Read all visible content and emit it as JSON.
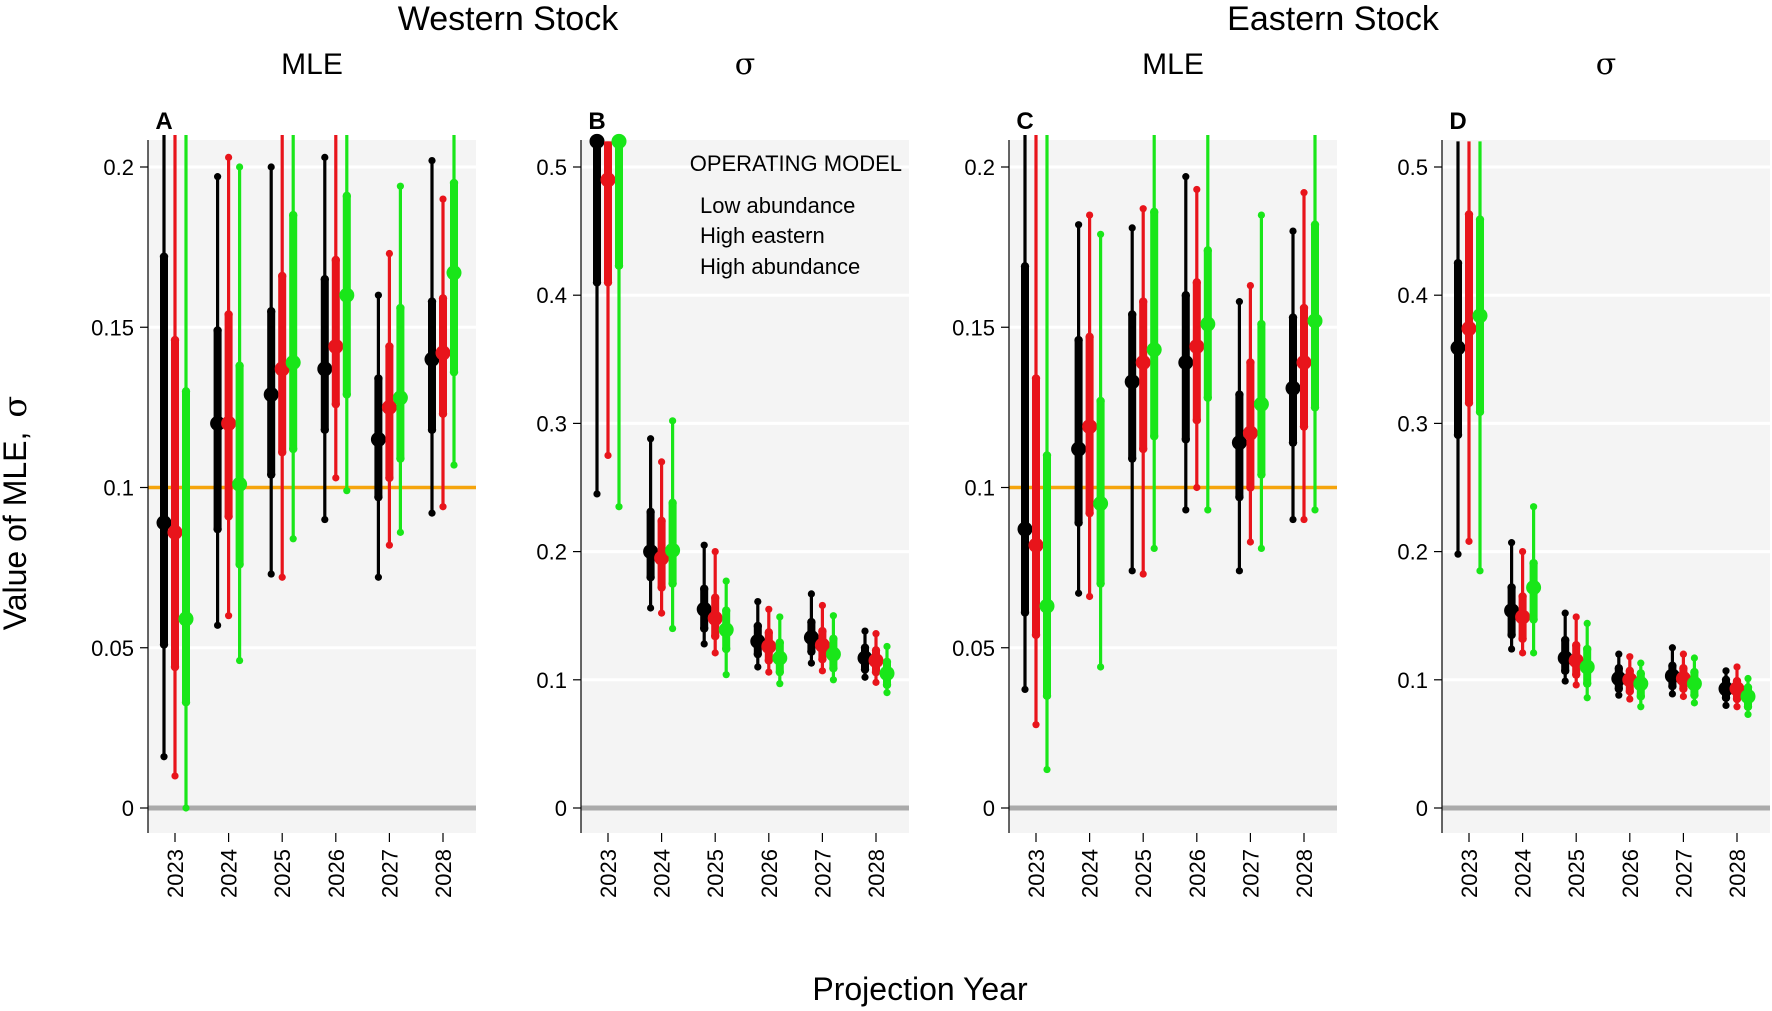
{
  "figure": {
    "stock_titles": [
      "Western Stock",
      "Eastern Stock"
    ],
    "ylabel_text": "Value of MLE,",
    "ylabel_symbol": "σ",
    "xlabel": "Projection Year"
  },
  "colors": {
    "low": "#000000",
    "higheast": "#e8141b",
    "highabund": "#19e619",
    "reference": "#f5a40c",
    "panel_bg": "#f4f4f4",
    "gridline": "#ffffff",
    "zero_line": "#aaaaaa"
  },
  "legend": {
    "title": "OPERATING MODEL",
    "entries": [
      {
        "label": "Low abundance",
        "color": "#000000"
      },
      {
        "label": "High eastern",
        "color": "#e8141b"
      },
      {
        "label": "High abundance",
        "color": "#19e619"
      }
    ]
  },
  "chart_data": [
    {
      "type": "errorbar",
      "letter": "A",
      "title": "MLE",
      "ylim": [
        0,
        0.21
      ],
      "yticks": [
        0,
        0.05,
        0.1,
        0.15,
        0.2
      ],
      "ytick_labels": [
        "0",
        "0.05",
        "0.1",
        "0.15",
        "0.2"
      ],
      "reference_line": 0.1,
      "categories": [
        "2023",
        "2024",
        "2025",
        "2026",
        "2027",
        "2028"
      ],
      "series": [
        {
          "name": "Low abundance",
          "median": [
            0.089,
            0.12,
            0.129,
            0.137,
            0.115,
            0.14
          ],
          "q25": [
            0.051,
            0.087,
            0.104,
            0.118,
            0.097,
            0.118
          ],
          "q75": [
            0.172,
            0.149,
            0.155,
            0.165,
            0.134,
            0.158
          ],
          "min": [
            0.016,
            0.057,
            0.073,
            0.09,
            0.072,
            0.092
          ],
          "max": [
            0.21,
            0.197,
            0.2,
            0.203,
            0.16,
            0.202
          ]
        },
        {
          "name": "High eastern",
          "median": [
            0.086,
            0.12,
            0.137,
            0.144,
            0.125,
            0.142
          ],
          "q25": [
            0.044,
            0.091,
            0.111,
            0.126,
            0.103,
            0.123
          ],
          "q75": [
            0.146,
            0.154,
            0.166,
            0.171,
            0.144,
            0.159
          ],
          "min": [
            0.01,
            0.06,
            0.072,
            0.103,
            0.082,
            0.094
          ],
          "max": [
            0.21,
            0.203,
            0.21,
            0.21,
            0.173,
            0.19
          ]
        },
        {
          "name": "High abundance",
          "median": [
            0.059,
            0.101,
            0.139,
            0.16,
            0.128,
            0.167
          ],
          "q25": [
            0.033,
            0.076,
            0.112,
            0.129,
            0.109,
            0.136
          ],
          "q75": [
            0.13,
            0.138,
            0.185,
            0.191,
            0.156,
            0.195
          ],
          "min": [
            0.0,
            0.046,
            0.084,
            0.099,
            0.086,
            0.107
          ],
          "max": [
            0.21,
            0.2,
            0.21,
            0.21,
            0.194,
            0.21
          ]
        }
      ]
    },
    {
      "type": "errorbar",
      "letter": "B",
      "title": "σ",
      "ylim": [
        0,
        0.52
      ],
      "yticks": [
        0,
        0.1,
        0.2,
        0.3,
        0.4,
        0.5
      ],
      "ytick_labels": [
        "0",
        "0.1",
        "0.2",
        "0.3",
        "0.4",
        "0.5"
      ],
      "reference_line": null,
      "categories": [
        "2023",
        "2024",
        "2025",
        "2026",
        "2027",
        "2028"
      ],
      "series": [
        {
          "name": "Low abundance",
          "median": [
            0.52,
            0.2,
            0.155,
            0.13,
            0.133,
            0.117
          ],
          "q25": [
            0.41,
            0.18,
            0.14,
            0.12,
            0.122,
            0.108
          ],
          "q75": [
            0.52,
            0.231,
            0.171,
            0.142,
            0.145,
            0.125
          ],
          "min": [
            0.245,
            0.156,
            0.128,
            0.11,
            0.113,
            0.102
          ],
          "max": [
            0.52,
            0.288,
            0.205,
            0.161,
            0.167,
            0.138
          ]
        },
        {
          "name": "High eastern",
          "median": [
            0.49,
            0.195,
            0.148,
            0.126,
            0.127,
            0.115
          ],
          "q25": [
            0.41,
            0.172,
            0.134,
            0.115,
            0.116,
            0.106
          ],
          "q75": [
            0.52,
            0.224,
            0.164,
            0.137,
            0.138,
            0.123
          ],
          "min": [
            0.275,
            0.152,
            0.121,
            0.106,
            0.107,
            0.098
          ],
          "max": [
            0.52,
            0.27,
            0.2,
            0.155,
            0.158,
            0.136
          ]
        },
        {
          "name": "High abundance",
          "median": [
            0.52,
            0.201,
            0.139,
            0.117,
            0.12,
            0.105
          ],
          "q25": [
            0.423,
            0.175,
            0.124,
            0.106,
            0.109,
            0.096
          ],
          "q75": [
            0.52,
            0.238,
            0.154,
            0.129,
            0.132,
            0.114
          ],
          "min": [
            0.235,
            0.14,
            0.104,
            0.097,
            0.1,
            0.09
          ],
          "max": [
            0.52,
            0.302,
            0.177,
            0.149,
            0.15,
            0.126
          ]
        }
      ]
    },
    {
      "type": "errorbar",
      "letter": "C",
      "title": "MLE",
      "ylim": [
        0,
        0.21
      ],
      "yticks": [
        0,
        0.05,
        0.1,
        0.15,
        0.2
      ],
      "ytick_labels": [
        "0",
        "0.05",
        "0.1",
        "0.15",
        "0.2"
      ],
      "reference_line": 0.1,
      "categories": [
        "2023",
        "2024",
        "2025",
        "2026",
        "2027",
        "2028"
      ],
      "series": [
        {
          "name": "Low abundance",
          "median": [
            0.087,
            0.112,
            0.133,
            0.139,
            0.114,
            0.131
          ],
          "q25": [
            0.061,
            0.089,
            0.109,
            0.115,
            0.097,
            0.114
          ],
          "q75": [
            0.169,
            0.146,
            0.154,
            0.16,
            0.129,
            0.153
          ],
          "min": [
            0.037,
            0.067,
            0.074,
            0.093,
            0.074,
            0.09
          ],
          "max": [
            0.21,
            0.182,
            0.181,
            0.197,
            0.158,
            0.18
          ]
        },
        {
          "name": "High eastern",
          "median": [
            0.082,
            0.119,
            0.139,
            0.144,
            0.117,
            0.139
          ],
          "q25": [
            0.054,
            0.092,
            0.112,
            0.121,
            0.1,
            0.119
          ],
          "q75": [
            0.134,
            0.147,
            0.158,
            0.164,
            0.139,
            0.156
          ],
          "min": [
            0.026,
            0.066,
            0.073,
            0.1,
            0.083,
            0.09
          ],
          "max": [
            0.21,
            0.185,
            0.187,
            0.193,
            0.163,
            0.192
          ]
        },
        {
          "name": "High abundance",
          "median": [
            0.063,
            0.095,
            0.143,
            0.151,
            0.126,
            0.152
          ],
          "q25": [
            0.035,
            0.07,
            0.116,
            0.128,
            0.104,
            0.125
          ],
          "q75": [
            0.11,
            0.127,
            0.186,
            0.174,
            0.151,
            0.182
          ],
          "min": [
            0.012,
            0.044,
            0.081,
            0.093,
            0.081,
            0.093
          ],
          "max": [
            0.21,
            0.179,
            0.21,
            0.21,
            0.185,
            0.21
          ]
        }
      ]
    },
    {
      "type": "errorbar",
      "letter": "D",
      "title": "σ",
      "ylim": [
        0,
        0.52
      ],
      "yticks": [
        0,
        0.1,
        0.2,
        0.3,
        0.4,
        0.5
      ],
      "ytick_labels": [
        "0",
        "0.1",
        "0.2",
        "0.3",
        "0.4",
        "0.5"
      ],
      "reference_line": null,
      "categories": [
        "2023",
        "2024",
        "2025",
        "2026",
        "2027",
        "2028"
      ],
      "series": [
        {
          "name": "Low abundance",
          "median": [
            0.359,
            0.154,
            0.117,
            0.101,
            0.103,
            0.093
          ],
          "q25": [
            0.291,
            0.135,
            0.107,
            0.093,
            0.095,
            0.086
          ],
          "q75": [
            0.425,
            0.172,
            0.131,
            0.109,
            0.111,
            0.1
          ],
          "min": [
            0.198,
            0.124,
            0.099,
            0.088,
            0.089,
            0.08
          ],
          "max": [
            0.52,
            0.207,
            0.152,
            0.12,
            0.125,
            0.107
          ]
        },
        {
          "name": "High eastern",
          "median": [
            0.374,
            0.149,
            0.115,
            0.1,
            0.101,
            0.093
          ],
          "q25": [
            0.316,
            0.132,
            0.104,
            0.091,
            0.093,
            0.085
          ],
          "q75": [
            0.463,
            0.165,
            0.127,
            0.107,
            0.109,
            0.099
          ],
          "min": [
            0.208,
            0.121,
            0.096,
            0.085,
            0.087,
            0.079
          ],
          "max": [
            0.52,
            0.2,
            0.149,
            0.118,
            0.12,
            0.11
          ]
        },
        {
          "name": "High abundance",
          "median": [
            0.384,
            0.172,
            0.11,
            0.097,
            0.097,
            0.087
          ],
          "q25": [
            0.309,
            0.147,
            0.097,
            0.087,
            0.088,
            0.079
          ],
          "q75": [
            0.459,
            0.191,
            0.124,
            0.105,
            0.106,
            0.094
          ],
          "min": [
            0.185,
            0.121,
            0.086,
            0.079,
            0.082,
            0.073
          ],
          "max": [
            0.52,
            0.235,
            0.144,
            0.113,
            0.117,
            0.101
          ]
        }
      ]
    }
  ]
}
